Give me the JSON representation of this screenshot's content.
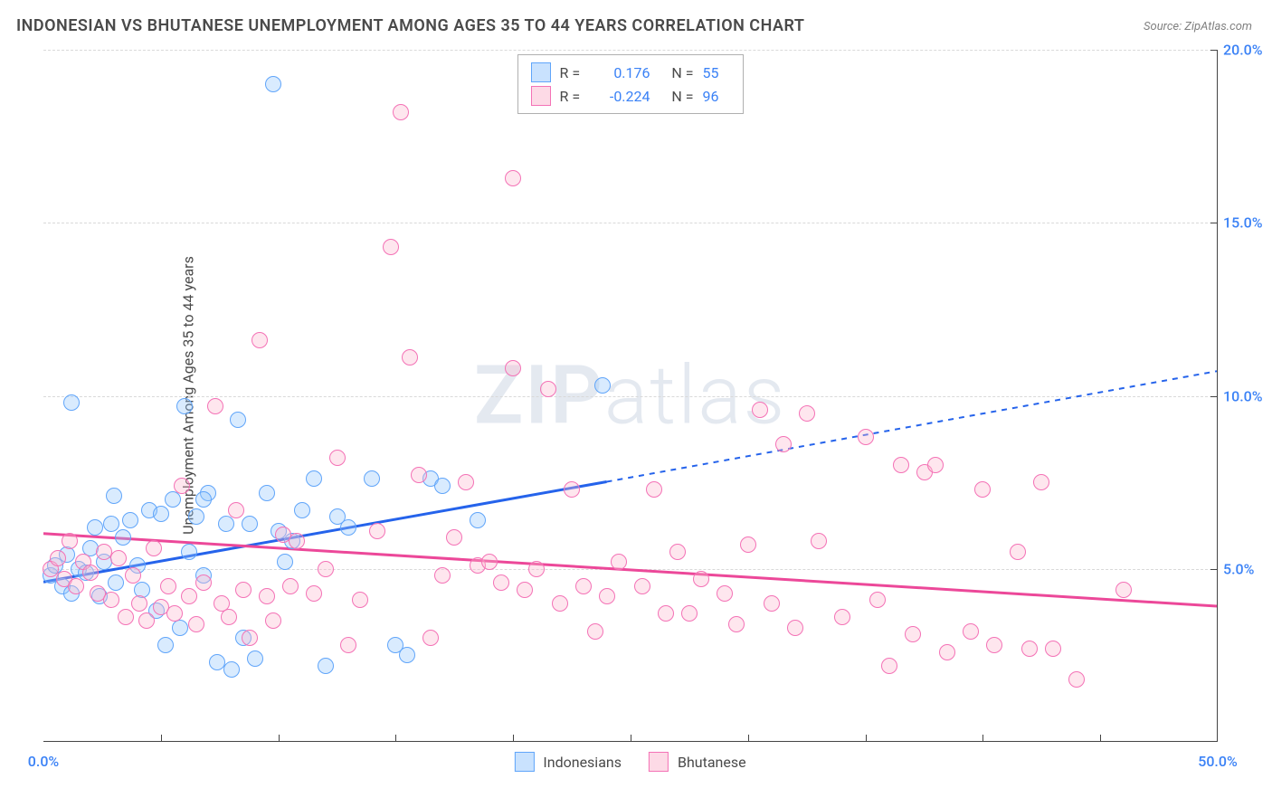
{
  "title": "INDONESIAN VS BHUTANESE UNEMPLOYMENT AMONG AGES 35 TO 44 YEARS CORRELATION CHART",
  "source": "Source: ZipAtlas.com",
  "y_axis_label": "Unemployment Among Ages 35 to 44 years",
  "watermark": {
    "bold": "ZIP",
    "rest": "atlas"
  },
  "chart": {
    "type": "scatter",
    "xlim": [
      0,
      50
    ],
    "ylim": [
      0,
      20
    ],
    "x_ticks": [
      0,
      50
    ],
    "x_tick_labels": [
      "0.0%",
      "50.0%"
    ],
    "y_ticks": [
      5,
      10,
      15,
      20
    ],
    "y_tick_labels": [
      "5.0%",
      "10.0%",
      "15.0%",
      "20.0%"
    ],
    "minor_x_ticks": [
      5,
      10,
      15,
      20,
      25,
      30,
      35,
      40,
      45
    ],
    "grid_color": "#d9d9d9",
    "axis_color": "#444444",
    "background_color": "#ffffff",
    "tick_label_color": "#3b82f6",
    "title_color": "#4a4a4a",
    "title_fontsize": 18,
    "axis_label_fontsize": 16,
    "tick_fontsize": 16,
    "point_radius": 9,
    "line_width": 3
  },
  "series": [
    {
      "name": "Indonesians",
      "key": "indonesians",
      "point_fill": "rgba(147,197,253,0.35)",
      "point_stroke": "#60a5fa",
      "line_color": "#2563eb",
      "r": "0.176",
      "n": "55",
      "trend": {
        "x1": 0,
        "y1": 4.6,
        "x2_solid": 24,
        "y2_solid": 7.5,
        "x2": 50,
        "y2": 10.7
      },
      "points": [
        [
          0.3,
          4.8
        ],
        [
          0.5,
          5.1
        ],
        [
          0.8,
          4.5
        ],
        [
          1.0,
          5.4
        ],
        [
          1.2,
          4.3
        ],
        [
          1.5,
          5.0
        ],
        [
          1.8,
          4.9
        ],
        [
          2.0,
          5.6
        ],
        [
          2.2,
          6.2
        ],
        [
          2.4,
          4.2
        ],
        [
          2.6,
          5.2
        ],
        [
          2.9,
          6.3
        ],
        [
          3.1,
          4.6
        ],
        [
          3.4,
          5.9
        ],
        [
          3.7,
          6.4
        ],
        [
          4.0,
          5.1
        ],
        [
          4.2,
          4.4
        ],
        [
          4.5,
          6.7
        ],
        [
          4.8,
          3.8
        ],
        [
          5.0,
          6.6
        ],
        [
          5.2,
          2.8
        ],
        [
          5.5,
          7.0
        ],
        [
          5.8,
          3.3
        ],
        [
          6.0,
          9.7
        ],
        [
          6.2,
          5.5
        ],
        [
          6.5,
          6.5
        ],
        [
          6.8,
          4.8
        ],
        [
          7.0,
          7.2
        ],
        [
          7.4,
          2.3
        ],
        [
          7.8,
          6.3
        ],
        [
          8.0,
          2.1
        ],
        [
          8.3,
          9.3
        ],
        [
          8.5,
          3.0
        ],
        [
          8.8,
          6.3
        ],
        [
          9.0,
          2.4
        ],
        [
          9.5,
          7.2
        ],
        [
          9.8,
          19.0
        ],
        [
          10.0,
          6.1
        ],
        [
          10.3,
          5.2
        ],
        [
          10.6,
          5.8
        ],
        [
          11.0,
          6.7
        ],
        [
          11.5,
          7.6
        ],
        [
          12.0,
          2.2
        ],
        [
          12.5,
          6.5
        ],
        [
          13.0,
          6.2
        ],
        [
          14.0,
          7.6
        ],
        [
          15.0,
          2.8
        ],
        [
          16.5,
          7.6
        ],
        [
          17.0,
          7.4
        ],
        [
          18.5,
          6.4
        ],
        [
          23.8,
          10.3
        ],
        [
          15.5,
          2.5
        ],
        [
          1.2,
          9.8
        ],
        [
          3.0,
          7.1
        ],
        [
          6.8,
          7.0
        ]
      ]
    },
    {
      "name": "Bhutanese",
      "key": "bhutanese",
      "point_fill": "rgba(251,182,206,0.35)",
      "point_stroke": "#f472b6",
      "line_color": "#ec4899",
      "r": "-0.224",
      "n": "96",
      "trend": {
        "x1": 0,
        "y1": 6.0,
        "x2_solid": 50,
        "y2_solid": 3.9,
        "x2": 50,
        "y2": 3.9
      },
      "points": [
        [
          0.3,
          5.0
        ],
        [
          0.6,
          5.3
        ],
        [
          0.9,
          4.7
        ],
        [
          1.1,
          5.8
        ],
        [
          1.4,
          4.5
        ],
        [
          1.7,
          5.2
        ],
        [
          2.0,
          4.9
        ],
        [
          2.3,
          4.3
        ],
        [
          2.6,
          5.5
        ],
        [
          2.9,
          4.1
        ],
        [
          3.2,
          5.3
        ],
        [
          3.5,
          3.6
        ],
        [
          3.8,
          4.8
        ],
        [
          4.1,
          4.0
        ],
        [
          4.4,
          3.5
        ],
        [
          4.7,
          5.6
        ],
        [
          5.0,
          3.9
        ],
        [
          5.3,
          4.5
        ],
        [
          5.6,
          3.7
        ],
        [
          5.9,
          7.4
        ],
        [
          6.2,
          4.2
        ],
        [
          6.5,
          3.4
        ],
        [
          6.8,
          4.6
        ],
        [
          7.3,
          9.7
        ],
        [
          7.6,
          4.0
        ],
        [
          7.9,
          3.6
        ],
        [
          8.2,
          6.7
        ],
        [
          8.5,
          4.4
        ],
        [
          8.8,
          3.0
        ],
        [
          9.2,
          11.6
        ],
        [
          9.5,
          4.2
        ],
        [
          9.8,
          3.5
        ],
        [
          10.2,
          6.0
        ],
        [
          10.5,
          4.5
        ],
        [
          10.8,
          5.8
        ],
        [
          11.5,
          4.3
        ],
        [
          12.0,
          5.0
        ],
        [
          12.5,
          8.2
        ],
        [
          13.0,
          2.8
        ],
        [
          13.5,
          4.1
        ],
        [
          14.2,
          6.1
        ],
        [
          14.8,
          14.3
        ],
        [
          15.2,
          18.2
        ],
        [
          15.6,
          11.1
        ],
        [
          16.0,
          7.7
        ],
        [
          16.5,
          3.0
        ],
        [
          17.0,
          4.8
        ],
        [
          17.5,
          5.9
        ],
        [
          18.0,
          7.5
        ],
        [
          18.5,
          5.1
        ],
        [
          19.0,
          5.2
        ],
        [
          19.5,
          4.6
        ],
        [
          20.0,
          10.8
        ],
        [
          20.5,
          4.4
        ],
        [
          21.0,
          5.0
        ],
        [
          21.5,
          10.2
        ],
        [
          22.5,
          7.3
        ],
        [
          23.0,
          4.5
        ],
        [
          23.5,
          3.2
        ],
        [
          24.0,
          4.2
        ],
        [
          25.5,
          4.5
        ],
        [
          26.0,
          7.3
        ],
        [
          27.5,
          3.7
        ],
        [
          28.0,
          4.7
        ],
        [
          29.5,
          3.4
        ],
        [
          30.0,
          5.7
        ],
        [
          30.5,
          9.6
        ],
        [
          31.0,
          4.0
        ],
        [
          31.5,
          8.6
        ],
        [
          32.0,
          3.3
        ],
        [
          32.5,
          9.5
        ],
        [
          33.0,
          5.8
        ],
        [
          34.0,
          3.6
        ],
        [
          35.0,
          8.8
        ],
        [
          36.0,
          2.2
        ],
        [
          36.5,
          8.0
        ],
        [
          37.0,
          3.1
        ],
        [
          37.5,
          7.8
        ],
        [
          38.0,
          8.0
        ],
        [
          38.5,
          2.6
        ],
        [
          39.5,
          3.2
        ],
        [
          40.0,
          7.3
        ],
        [
          40.5,
          2.8
        ],
        [
          41.5,
          5.5
        ],
        [
          42.5,
          7.5
        ],
        [
          43.0,
          2.7
        ],
        [
          44.0,
          1.8
        ],
        [
          46.0,
          4.4
        ],
        [
          42.0,
          2.7
        ],
        [
          35.5,
          4.1
        ],
        [
          29.0,
          4.3
        ],
        [
          27.0,
          5.5
        ],
        [
          26.5,
          3.7
        ],
        [
          24.5,
          5.2
        ],
        [
          22.0,
          4.0
        ],
        [
          20.0,
          16.3
        ]
      ]
    }
  ],
  "legend_top": {
    "r_label": "R =",
    "n_label": "N ="
  },
  "legend_bottom": [
    {
      "swatch": "blue",
      "label": "Indonesians"
    },
    {
      "swatch": "pink",
      "label": "Bhutanese"
    }
  ]
}
